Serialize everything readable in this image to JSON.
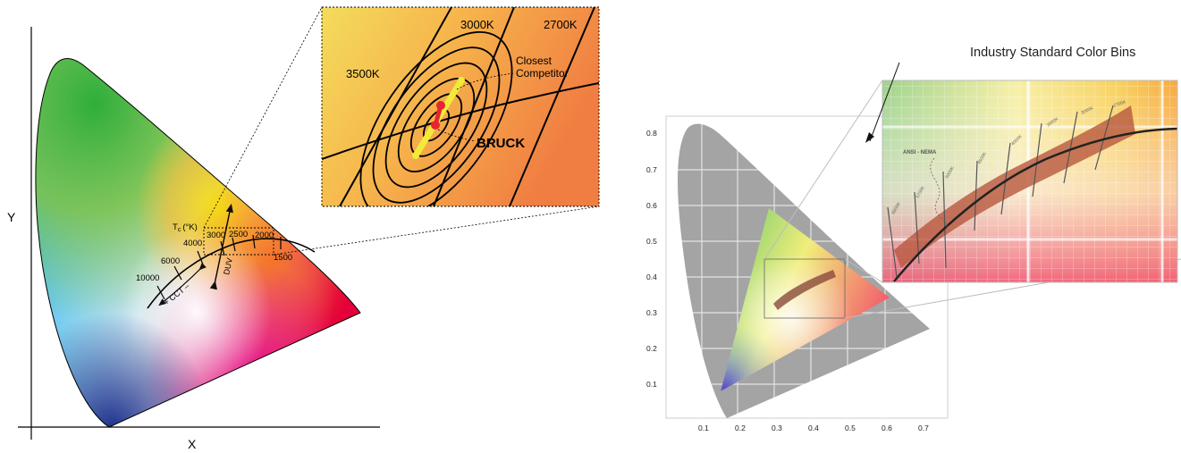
{
  "left_diagram": {
    "y_axis_label": "Y",
    "x_axis_label": "X",
    "tc_label": "T",
    "tc_sub": "c",
    "tc_unit": "(°K)",
    "temperatures": [
      "10000",
      "6000",
      "4000",
      "3000",
      "2500",
      "2000",
      "1500"
    ],
    "cct_label": "+ CCT –",
    "duv_label": "DUV"
  },
  "inset_zoom": {
    "labels": [
      "3500K",
      "3000K",
      "2700K"
    ],
    "competitor_label_line1": "Closest",
    "competitor_label_line2": "Competitor",
    "brand_label": "BRUCK"
  },
  "right_diagram": {
    "y_ticks": [
      "0.8",
      "0.7",
      "0.6",
      "0.5",
      "0.4",
      "0.3",
      "0.2",
      "0.1"
    ],
    "x_ticks": [
      "0.1",
      "0.2",
      "0.3",
      "0.4",
      "0.5",
      "0.6",
      "0.7"
    ],
    "callout_label": "Industry Standard Color Bins",
    "inset_label": "ANSI - NEMA",
    "bin_labels": [
      "6500K",
      "5700K",
      "5000K",
      "4500K",
      "4000K",
      "3500K",
      "3000K",
      "2700K"
    ]
  },
  "colors": {
    "accent_red": "#e8252f",
    "highlight_yellow": "#f1ea3a",
    "bin_band": "#b8583e"
  }
}
